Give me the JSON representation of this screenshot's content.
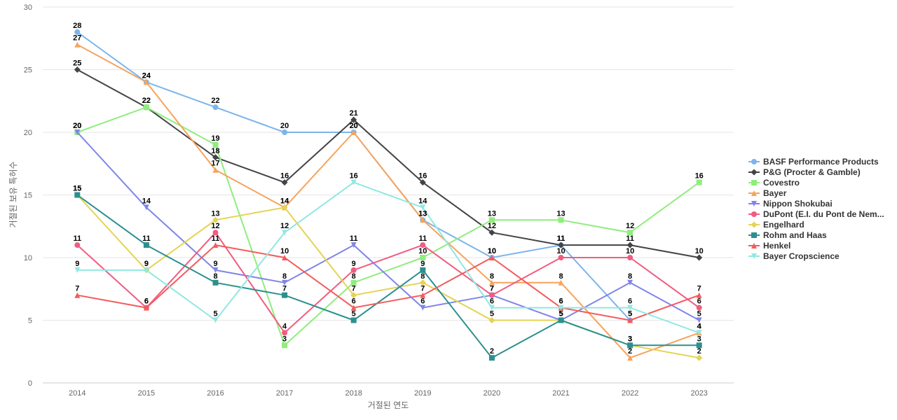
{
  "chart_data": {
    "type": "line",
    "title": "",
    "xlabel": "거절된 연도",
    "ylabel": "거절된 보유 특허수",
    "ylim": [
      0,
      30
    ],
    "yticks": [
      0,
      5,
      10,
      15,
      20,
      25,
      30
    ],
    "categories": [
      "2014",
      "2015",
      "2016",
      "2017",
      "2018",
      "2019",
      "2020",
      "2021",
      "2022",
      "2023"
    ],
    "grid": true,
    "legend_position": "right",
    "series": [
      {
        "name": "BASF Performance Products",
        "color": "#7cb5ec",
        "marker": "circle",
        "values": [
          28,
          24,
          22,
          20,
          20,
          13,
          10,
          11,
          5,
          null
        ]
      },
      {
        "name": "P&G (Procter & Gamble)",
        "color": "#434348",
        "marker": "diamond",
        "values": [
          25,
          22,
          18,
          16,
          21,
          16,
          12,
          11,
          11,
          10
        ]
      },
      {
        "name": "Covestro",
        "color": "#90ed7d",
        "marker": "square",
        "values": [
          20,
          22,
          19,
          3,
          8,
          10,
          13,
          13,
          12,
          16
        ]
      },
      {
        "name": "Bayer",
        "color": "#f7a35c",
        "marker": "triangle",
        "values": [
          27,
          24,
          17,
          14,
          20,
          13,
          8,
          8,
          2,
          4
        ]
      },
      {
        "name": "Nippon Shokubai",
        "color": "#8085e9",
        "marker": "triangle-down",
        "values": [
          20,
          14,
          9,
          8,
          11,
          6,
          7,
          5,
          8,
          5
        ]
      },
      {
        "name": "DuPont (E.I. du Pont de Nem...",
        "color": "#f15c80",
        "marker": "circle",
        "values": [
          11,
          6,
          12,
          4,
          9,
          11,
          7,
          10,
          10,
          6
        ]
      },
      {
        "name": "Engelhard",
        "color": "#e4d354",
        "marker": "diamond",
        "values": [
          15,
          9,
          13,
          14,
          7,
          8,
          5,
          5,
          3,
          2
        ]
      },
      {
        "name": "Rohm and Haas",
        "color": "#2b908f",
        "marker": "square",
        "values": [
          15,
          11,
          8,
          7,
          5,
          9,
          2,
          5,
          3,
          3
        ]
      },
      {
        "name": "Henkel",
        "color": "#f45b5b",
        "marker": "triangle",
        "values": [
          7,
          6,
          11,
          10,
          6,
          7,
          10,
          6,
          5,
          7
        ]
      },
      {
        "name": "Bayer Cropscience",
        "color": "#91e8e1",
        "marker": "triangle-down",
        "values": [
          9,
          9,
          5,
          12,
          16,
          14,
          6,
          6,
          6,
          4
        ]
      }
    ]
  }
}
